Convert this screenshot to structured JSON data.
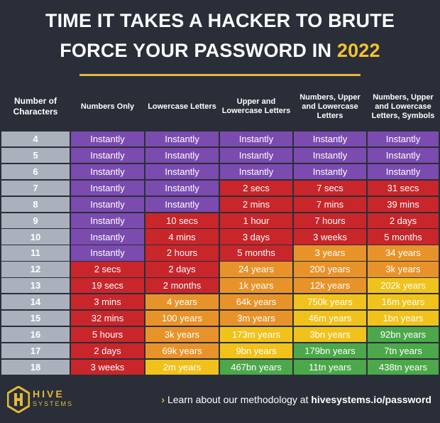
{
  "title": {
    "line1": "TIME IT TAKES A HACKER TO BRUTE",
    "line2": "FORCE YOUR PASSWORD IN",
    "year": "2022"
  },
  "table": {
    "headers": [
      "Number of Characters",
      "Numbers Only",
      "Lowercase Letters",
      "Upper and Lowercase Letters",
      "Numbers, Upper and Lowercase Letters",
      "Numbers, Upper and Lowercase Letters, Symbols"
    ],
    "rows": [
      {
        "characters": "4",
        "cells": [
          "Instantly",
          "Instantly",
          "Instantly",
          "Instantly",
          "Instantly"
        ],
        "colors": [
          "#7b4bb0",
          "#7b4bb0",
          "#7b4bb0",
          "#7b4bb0",
          "#7b4bb0"
        ]
      },
      {
        "characters": "5",
        "cells": [
          "Instantly",
          "Instantly",
          "Instantly",
          "Instantly",
          "Instantly"
        ],
        "colors": [
          "#7b4bb0",
          "#7b4bb0",
          "#7b4bb0",
          "#7b4bb0",
          "#7b4bb0"
        ]
      },
      {
        "characters": "6",
        "cells": [
          "Instantly",
          "Instantly",
          "Instantly",
          "Instantly",
          "Instantly"
        ],
        "colors": [
          "#7b4bb0",
          "#7b4bb0",
          "#7b4bb0",
          "#7b4bb0",
          "#7b4bb0"
        ]
      },
      {
        "characters": "7",
        "cells": [
          "Instantly",
          "Instantly",
          "2 secs",
          "7 secs",
          "31 secs"
        ],
        "colors": [
          "#7b4bb0",
          "#7b4bb0",
          "#c8262b",
          "#c8262b",
          "#c8262b"
        ]
      },
      {
        "characters": "8",
        "cells": [
          "Instantly",
          "Instantly",
          "2 mins",
          "7 mins",
          "39 mins"
        ],
        "colors": [
          "#7b4bb0",
          "#7b4bb0",
          "#c8262b",
          "#c8262b",
          "#c8262b"
        ]
      },
      {
        "characters": "9",
        "cells": [
          "Instantly",
          "10 secs",
          "1 hour",
          "7 hours",
          "2 days"
        ],
        "colors": [
          "#7b4bb0",
          "#c8262b",
          "#c8262b",
          "#c8262b",
          "#c8262b"
        ]
      },
      {
        "characters": "10",
        "cells": [
          "Instantly",
          "4 mins",
          "3 days",
          "3 weeks",
          "5 months"
        ],
        "colors": [
          "#7b4bb0",
          "#c8262b",
          "#c8262b",
          "#c8262b",
          "#c8262b"
        ]
      },
      {
        "characters": "11",
        "cells": [
          "Instantly",
          "2 hours",
          "5 months",
          "3 years",
          "34 years"
        ],
        "colors": [
          "#7b4bb0",
          "#c8262b",
          "#c8262b",
          "#e8932a",
          "#e8932a"
        ]
      },
      {
        "characters": "12",
        "cells": [
          "2 secs",
          "2 days",
          "24 years",
          "200 years",
          "3k years"
        ],
        "colors": [
          "#c8262b",
          "#c8262b",
          "#e8932a",
          "#e8932a",
          "#e8932a"
        ]
      },
      {
        "characters": "13",
        "cells": [
          "19 secs",
          "2 months",
          "1k years",
          "12k years",
          "202k years"
        ],
        "colors": [
          "#c8262b",
          "#c8262b",
          "#e8932a",
          "#e8932a",
          "#f0c21b"
        ]
      },
      {
        "characters": "14",
        "cells": [
          "3 mins",
          "4 years",
          "64k years",
          "750k years",
          "16m years"
        ],
        "colors": [
          "#c8262b",
          "#e8932a",
          "#e8932a",
          "#f0c21b",
          "#f0c21b"
        ]
      },
      {
        "characters": "15",
        "cells": [
          "32 mins",
          "100 years",
          "3m years",
          "46m years",
          "1bn years"
        ],
        "colors": [
          "#c8262b",
          "#e8932a",
          "#e8932a",
          "#f0c21b",
          "#f0c21b"
        ]
      },
      {
        "characters": "16",
        "cells": [
          "5 hours",
          "3k years",
          "173m years",
          "3bn years",
          "92bn years"
        ],
        "colors": [
          "#c8262b",
          "#e8932a",
          "#f0c21b",
          "#f0c21b",
          "#4ca84a"
        ]
      },
      {
        "characters": "17",
        "cells": [
          "2 days",
          "69k years",
          "9bn years",
          "179bn years",
          "7tn years"
        ],
        "colors": [
          "#c8262b",
          "#e8932a",
          "#f0c21b",
          "#4ca84a",
          "#4ca84a"
        ]
      },
      {
        "characters": "18",
        "cells": [
          "3 weeks",
          "2m years",
          "467bn years",
          "11tn years",
          "438tn years"
        ],
        "colors": [
          "#c8262b",
          "#f0c21b",
          "#4ca84a",
          "#4ca84a",
          "#4ca84a"
        ]
      }
    ]
  },
  "footer": {
    "logo": "HIVE",
    "logo_sub": "SYSTEMS",
    "link_prefix": "Learn about our methodology at",
    "link": "hivesystems.io/password"
  }
}
